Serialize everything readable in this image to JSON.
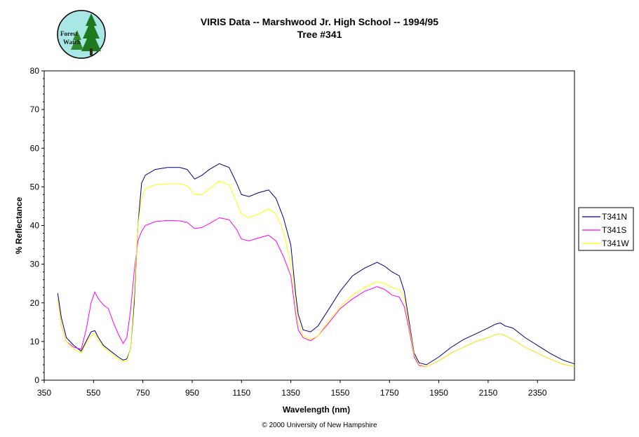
{
  "logo": {
    "line1": "Forest",
    "line2": "Watch"
  },
  "footer": "© 2000 University of New Hampshire",
  "chart_data": {
    "type": "line",
    "title": "VIRIS Data -- Marshwood Jr. High School -- 1994/95",
    "subtitle": "Tree #341",
    "xlabel": "Wavelength (nm)",
    "ylabel": "% Reflectance",
    "xlim": [
      350,
      2500
    ],
    "ylim": [
      0,
      80
    ],
    "xticks": [
      350,
      550,
      750,
      950,
      1150,
      1350,
      1550,
      1750,
      1950,
      2150,
      2350
    ],
    "yticks": [
      0,
      10,
      20,
      30,
      40,
      50,
      60,
      70,
      80
    ],
    "grid": false,
    "legend": "right",
    "series": [
      {
        "name": "T341N",
        "color": "#000080",
        "x": [
          405,
          420,
          440,
          470,
          500,
          520,
          540,
          555,
          570,
          590,
          620,
          650,
          670,
          685,
          700,
          715,
          730,
          745,
          760,
          800,
          850,
          900,
          930,
          960,
          990,
          1020,
          1060,
          1100,
          1130,
          1150,
          1180,
          1220,
          1260,
          1290,
          1320,
          1350,
          1370,
          1380,
          1400,
          1430,
          1460,
          1500,
          1550,
          1600,
          1650,
          1700,
          1730,
          1760,
          1790,
          1810,
          1830,
          1850,
          1870,
          1900,
          1950,
          2000,
          2050,
          2100,
          2150,
          2180,
          2200,
          2220,
          2250,
          2300,
          2350,
          2400,
          2450,
          2500
        ],
        "y": [
          22.5,
          16,
          11,
          9,
          7.5,
          10,
          12.5,
          12.8,
          11,
          9,
          7.5,
          6,
          5.2,
          5.5,
          8,
          20,
          40,
          51,
          53,
          54.5,
          55,
          55,
          54.5,
          52,
          53,
          54.5,
          56,
          55,
          51,
          48,
          47.5,
          48.5,
          49.2,
          47,
          42,
          35,
          22,
          17,
          13,
          12.5,
          14,
          18,
          23,
          27,
          29,
          30.5,
          29.5,
          28,
          27,
          23,
          15,
          7,
          4.5,
          4,
          6,
          8.5,
          10.5,
          12,
          13.5,
          14.5,
          14.8,
          14,
          13.5,
          11,
          9,
          7,
          5.3,
          4.2
        ]
      },
      {
        "name": "T341S",
        "color": "#ff00ff",
        "x": [
          405,
          420,
          440,
          470,
          500,
          520,
          540,
          555,
          570,
          590,
          610,
          630,
          650,
          670,
          685,
          700,
          715,
          730,
          745,
          760,
          800,
          850,
          900,
          930,
          960,
          990,
          1020,
          1060,
          1100,
          1130,
          1150,
          1180,
          1220,
          1260,
          1290,
          1320,
          1350,
          1370,
          1380,
          1400,
          1430,
          1460,
          1500,
          1550,
          1600,
          1650,
          1700,
          1730,
          1760,
          1790,
          1810,
          1830,
          1850,
          1870,
          1900,
          1950,
          2000,
          2050,
          2100,
          2150,
          2180,
          2200,
          2220,
          2250,
          2300,
          2350,
          2400,
          2450,
          2500
        ],
        "y": [
          21,
          14,
          10,
          8.5,
          8,
          13,
          20,
          22.8,
          21,
          19.5,
          18.5,
          15,
          12,
          9.5,
          11,
          18,
          28,
          36,
          38.5,
          40,
          41,
          41.3,
          41.2,
          40.8,
          39.2,
          39.5,
          40.5,
          42,
          41.5,
          39,
          36.5,
          36,
          36.8,
          37.5,
          36,
          32,
          27,
          17,
          13,
          11,
          10.2,
          11.5,
          14.5,
          18.5,
          21,
          23,
          24.2,
          23.5,
          22,
          21.5,
          19,
          13,
          6,
          3.8,
          3.5,
          5,
          7,
          8.5,
          10,
          11,
          11.8,
          12,
          11.5,
          10.5,
          8.5,
          7,
          5.5,
          4.2,
          3.5
        ]
      },
      {
        "name": "T341W",
        "color": "#ffff00",
        "x": [
          405,
          420,
          440,
          470,
          500,
          520,
          540,
          555,
          570,
          590,
          620,
          650,
          670,
          685,
          700,
          715,
          730,
          745,
          760,
          800,
          850,
          900,
          930,
          960,
          990,
          1020,
          1060,
          1100,
          1130,
          1150,
          1180,
          1220,
          1260,
          1290,
          1320,
          1350,
          1370,
          1380,
          1400,
          1430,
          1460,
          1500,
          1550,
          1600,
          1650,
          1700,
          1730,
          1760,
          1790,
          1810,
          1830,
          1850,
          1870,
          1900,
          1950,
          2000,
          2050,
          2100,
          2150,
          2180,
          2200,
          2220,
          2250,
          2300,
          2350,
          2400,
          2450,
          2500
        ],
        "y": [
          21,
          14,
          10,
          8,
          7,
          9.5,
          11.5,
          12,
          10.5,
          8.5,
          7,
          5.5,
          4.8,
          5,
          8,
          22,
          40,
          47,
          49.5,
          50.5,
          50.8,
          50.8,
          50.3,
          48,
          48,
          49.5,
          51.5,
          50.5,
          46,
          43,
          42,
          43,
          44.3,
          43,
          38.5,
          30,
          20,
          15,
          11.5,
          10.5,
          11.5,
          15,
          19,
          22,
          24,
          25.5,
          25,
          24,
          23.5,
          21,
          14,
          6.5,
          4,
          3.5,
          5,
          7,
          8.5,
          10,
          11,
          11.8,
          12,
          11.5,
          10.5,
          8.5,
          7,
          5.5,
          4.2,
          3.5
        ]
      }
    ]
  }
}
